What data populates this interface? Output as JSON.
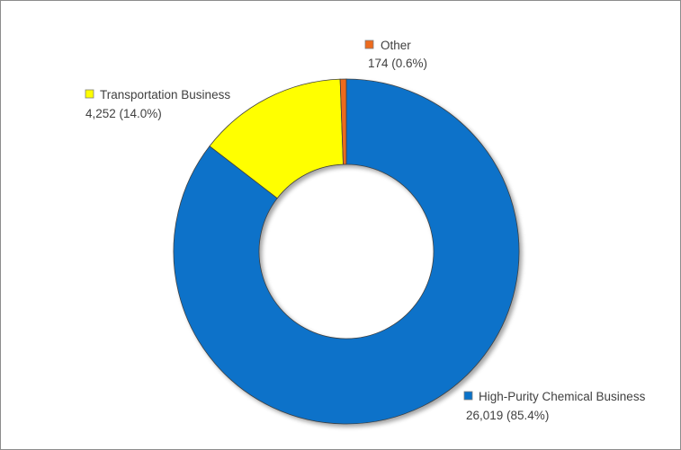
{
  "chart_data": {
    "type": "pie",
    "donut": true,
    "title": "",
    "slices": [
      {
        "name": "High-Purity Chemical Business",
        "value": 26019,
        "value_label": "26,019 (85.4%)",
        "percent": 85.4,
        "color": "#0a72c9"
      },
      {
        "name": "Transportation Business",
        "value": 4252,
        "value_label": "4,252 (14.0%)",
        "percent": 14.0,
        "color": "#ffff00"
      },
      {
        "name": "Other",
        "value": 174,
        "value_label": "174 (0.6%)",
        "percent": 0.6,
        "color": "#ed6b1d"
      }
    ],
    "legend": "labels beside slices"
  }
}
